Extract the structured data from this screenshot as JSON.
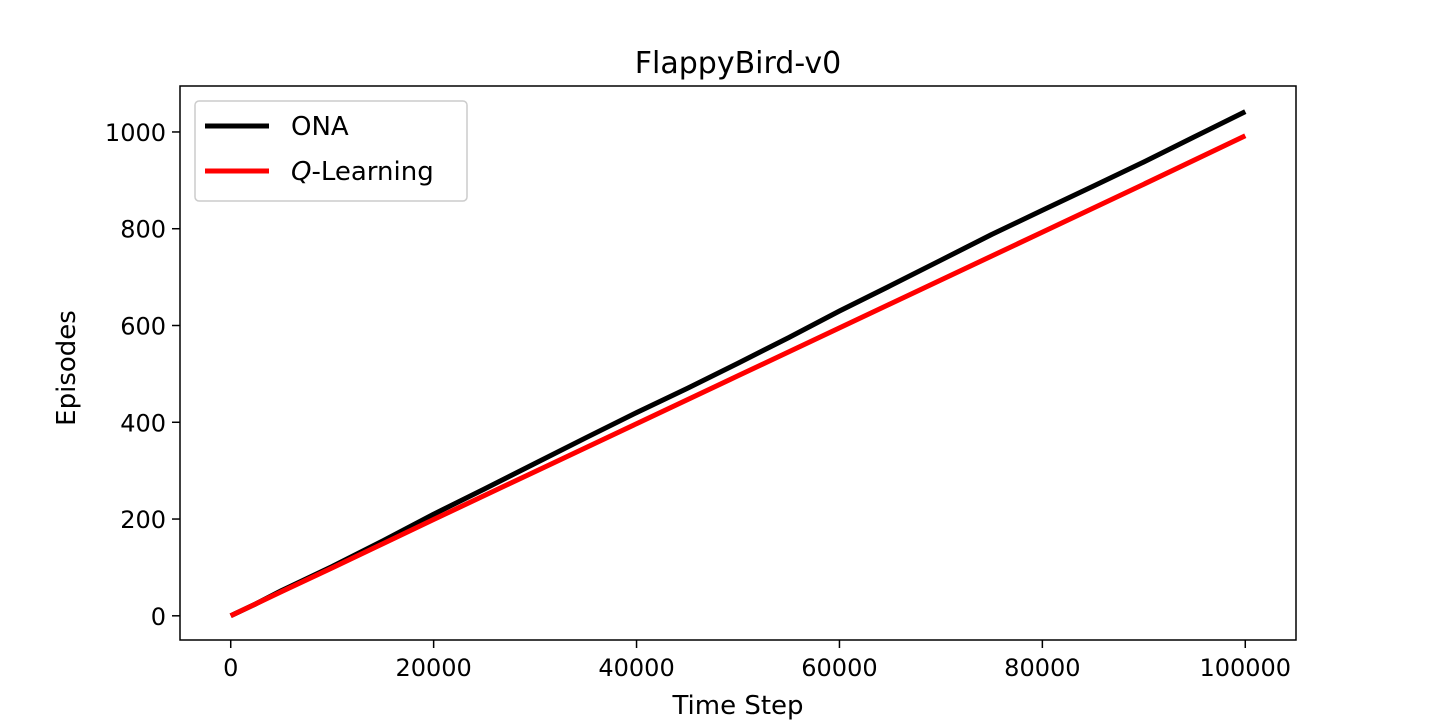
{
  "chart_data": {
    "type": "line",
    "title": "FlappyBird-v0",
    "xlabel": "Time Step",
    "ylabel": "Episodes",
    "xlim": [
      -5000,
      105000
    ],
    "ylim": [
      -50,
      1095
    ],
    "xticks": [
      0,
      20000,
      40000,
      60000,
      80000,
      100000
    ],
    "yticks": [
      0,
      200,
      400,
      600,
      800,
      1000
    ],
    "grid": false,
    "legend_position": "top-left",
    "series": [
      {
        "name": "ONA",
        "name_prefix": "",
        "name_suffix": "ONA",
        "color": "#000000",
        "x": [
          0,
          2500,
          5000,
          10000,
          15000,
          20000,
          25000,
          30000,
          35000,
          40000,
          45000,
          50000,
          55000,
          60000,
          65000,
          70000,
          75000,
          80000,
          85000,
          90000,
          95000,
          100000
        ],
        "y": [
          0,
          25,
          52,
          102,
          155,
          210,
          262,
          315,
          368,
          420,
          470,
          522,
          575,
          630,
          682,
          735,
          788,
          838,
          888,
          938,
          990,
          1042
        ]
      },
      {
        "name": "Q-Learning",
        "name_prefix": "Q",
        "name_suffix": "-Learning",
        "color": "#ff0000",
        "x": [
          0,
          5000,
          10000,
          20000,
          30000,
          40000,
          50000,
          60000,
          70000,
          80000,
          90000,
          100000
        ],
        "y": [
          0,
          50,
          99,
          199,
          298,
          397,
          496,
          595,
          694,
          793,
          892,
          992
        ]
      }
    ]
  }
}
